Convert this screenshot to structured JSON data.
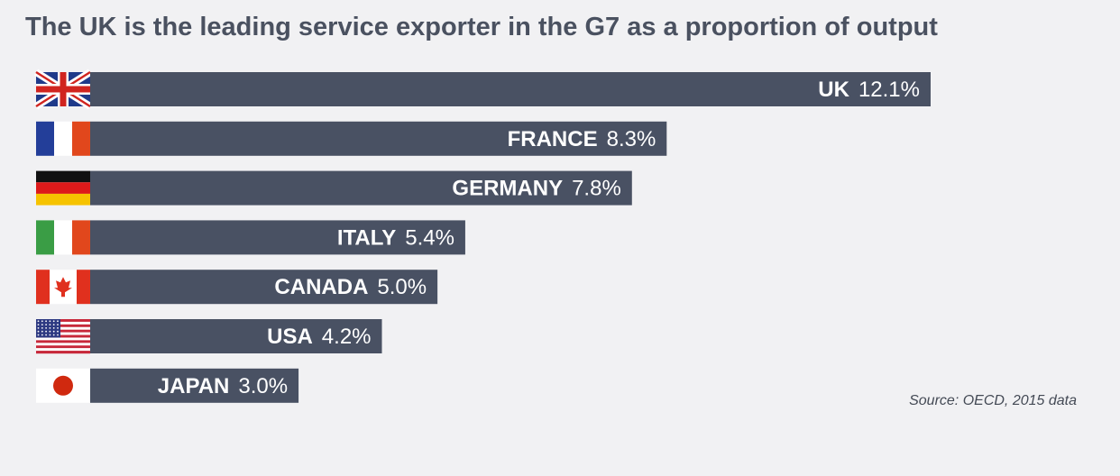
{
  "chart_data": {
    "type": "bar",
    "orientation": "horizontal",
    "title": "The UK is the leading service exporter in the G7 as a proportion of output",
    "source": "Source: OECD, 2015 data",
    "categories": [
      "UK",
      "FRANCE",
      "GERMANY",
      "ITALY",
      "CANADA",
      "USA",
      "JAPAN"
    ],
    "values": [
      12.1,
      8.3,
      7.8,
      5.4,
      5.0,
      4.2,
      3.0
    ],
    "value_labels": [
      "12.1%",
      "8.3%",
      "7.8%",
      "5.4%",
      "5.0%",
      "4.2%",
      "3.0%"
    ],
    "flags": [
      "uk-flag",
      "france-flag",
      "germany-flag",
      "italy-flag",
      "canada-flag",
      "usa-flag",
      "japan-flag"
    ],
    "unit": "%",
    "xlim": [
      0,
      12.1
    ],
    "bar_color": "#495163"
  }
}
